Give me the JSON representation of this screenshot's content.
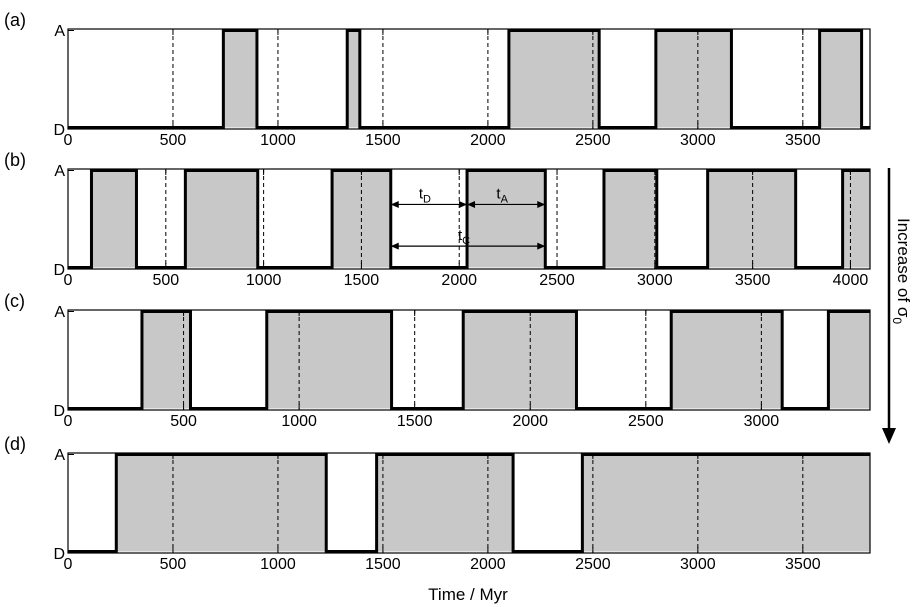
{
  "figure": {
    "xlabel": "Time / Myr",
    "arrow_label": "Increase of σ",
    "arrow_label_sub": "0",
    "colors": {
      "fill": "#c8c8c8",
      "line": "#000000",
      "background": "#ffffff"
    }
  },
  "chart_data": [
    {
      "type": "area",
      "panel_label": "(a)",
      "step": true,
      "ytick_labels": [
        "D",
        "A"
      ],
      "xlim": [
        0,
        3820
      ],
      "xticks": [
        0,
        500,
        1000,
        1500,
        2000,
        2500,
        3000,
        3500
      ],
      "grid": "vertical dashed at 500 Myr intervals",
      "active_intervals": [
        [
          740,
          900
        ],
        [
          1330,
          1390
        ],
        [
          2100,
          2530
        ],
        [
          2800,
          3160
        ],
        [
          3580,
          3780
        ]
      ]
    },
    {
      "type": "area",
      "panel_label": "(b)",
      "step": true,
      "ytick_labels": [
        "D",
        "A"
      ],
      "xlim": [
        0,
        4100
      ],
      "xticks": [
        0,
        500,
        1000,
        1500,
        2000,
        2500,
        3000,
        3500,
        4000
      ],
      "grid": "vertical dashed at 500 Myr intervals",
      "active_intervals": [
        [
          120,
          350
        ],
        [
          600,
          970
        ],
        [
          1350,
          1650
        ],
        [
          2040,
          2440
        ],
        [
          2740,
          3010
        ],
        [
          3270,
          3720
        ],
        [
          3960,
          4100
        ]
      ],
      "annotations": [
        {
          "label": "t",
          "sub": "D",
          "from": 1650,
          "to": 2040,
          "level": 0.65
        },
        {
          "label": "t",
          "sub": "A",
          "from": 2040,
          "to": 2440,
          "level": 0.65
        },
        {
          "label": "t",
          "sub": "C",
          "from": 1650,
          "to": 2440,
          "level": 0.22
        }
      ]
    },
    {
      "type": "area",
      "panel_label": "(c)",
      "step": true,
      "ytick_labels": [
        "D",
        "A"
      ],
      "xlim": [
        0,
        3470
      ],
      "xticks": [
        0,
        500,
        1000,
        1500,
        2000,
        2500,
        3000
      ],
      "grid": "vertical dashed at 500 Myr intervals",
      "active_intervals": [
        [
          320,
          530
        ],
        [
          860,
          1400
        ],
        [
          1710,
          2200
        ],
        [
          2610,
          3090
        ],
        [
          3290,
          3470
        ]
      ]
    },
    {
      "type": "area",
      "panel_label": "(d)",
      "step": true,
      "ytick_labels": [
        "D",
        "A"
      ],
      "xlim": [
        0,
        3820
      ],
      "xticks": [
        0,
        500,
        1000,
        1500,
        2000,
        2500,
        3000,
        3500
      ],
      "grid": "vertical dashed at 500 Myr intervals",
      "active_intervals": [
        [
          230,
          1230
        ],
        [
          1470,
          2120
        ],
        [
          2450,
          3820
        ]
      ]
    }
  ]
}
